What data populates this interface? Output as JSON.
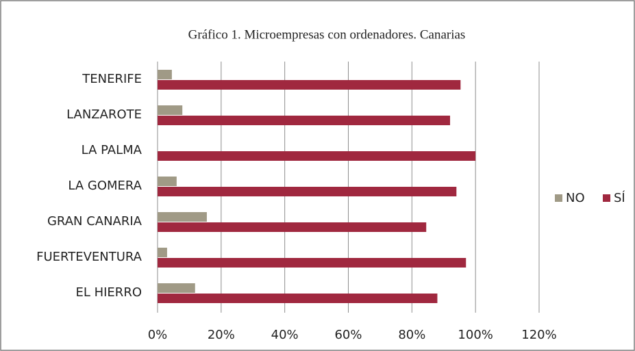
{
  "chart_data": {
    "type": "bar",
    "orientation": "horizontal",
    "title": "Gráfico 1. Microempresas con ordenadores. Canarias",
    "categories": [
      "TENERIFE",
      "LANZAROTE",
      "LA PALMA",
      "LA GOMERA",
      "GRAN CANARIA",
      "FUERTEVENTURA",
      "EL HIERRO"
    ],
    "series": [
      {
        "name": "NO",
        "color": "#a09a86",
        "values": [
          4.5,
          7.8,
          0,
          6,
          15.5,
          3,
          11.8
        ]
      },
      {
        "name": "SÍ",
        "color": "#a0283f",
        "values": [
          95.3,
          92,
          100,
          94,
          84.5,
          97,
          88
        ]
      }
    ],
    "xlim": [
      0,
      120
    ],
    "xticks": [
      {
        "value": 0,
        "label": "0%"
      },
      {
        "value": 20,
        "label": "20%"
      },
      {
        "value": 40,
        "label": "40%"
      },
      {
        "value": 60,
        "label": "60%"
      },
      {
        "value": 80,
        "label": "80%"
      },
      {
        "value": 100,
        "label": "100%"
      },
      {
        "value": 120,
        "label": "120%"
      }
    ],
    "grid": true,
    "legend": "right"
  }
}
